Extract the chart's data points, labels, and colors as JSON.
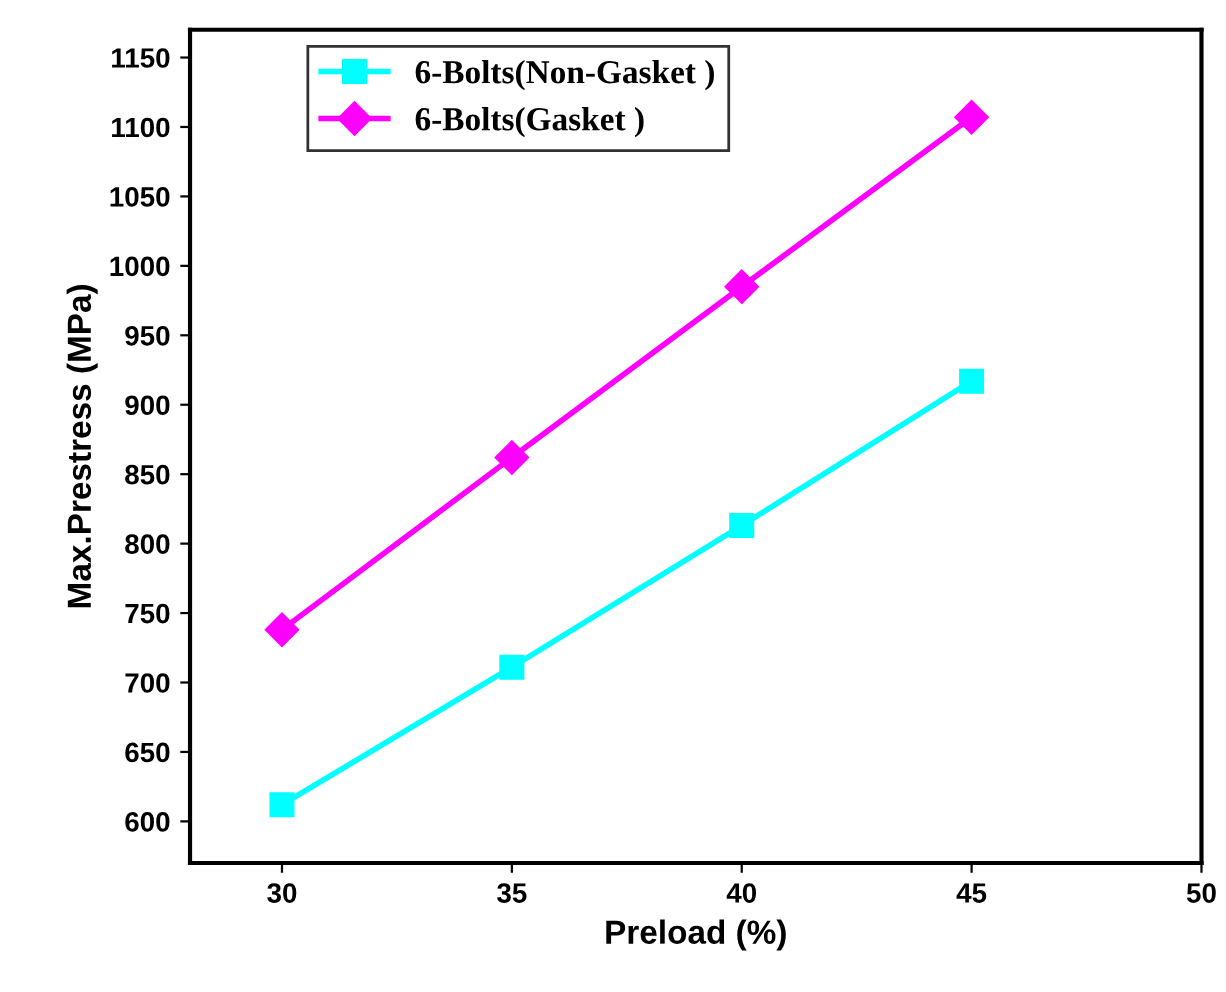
{
  "chart_data": {
    "type": "line",
    "xlabel": "Preload (%)",
    "ylabel": "Max.Prestress (MPa)",
    "x": [
      30,
      35,
      40,
      45
    ],
    "series": [
      {
        "name": "6-Bolts(Non-Gasket )",
        "color": "#00ffff",
        "values": [
          612,
          711,
          813,
          917
        ],
        "marker": "square"
      },
      {
        "name": "6-Bolts(Gasket )",
        "color": "#ff00ff",
        "values": [
          738,
          862,
          985,
          1107
        ],
        "marker": "diamond"
      }
    ],
    "xlim": [
      28,
      50
    ],
    "xticks": [
      30,
      35,
      40,
      45,
      50
    ],
    "ylim": [
      570,
      1170
    ],
    "yticks": [
      600,
      650,
      700,
      750,
      800,
      850,
      900,
      950,
      1000,
      1050,
      1100,
      1150
    ],
    "legend": "top left",
    "grid": false,
    "line_style": "solid"
  }
}
